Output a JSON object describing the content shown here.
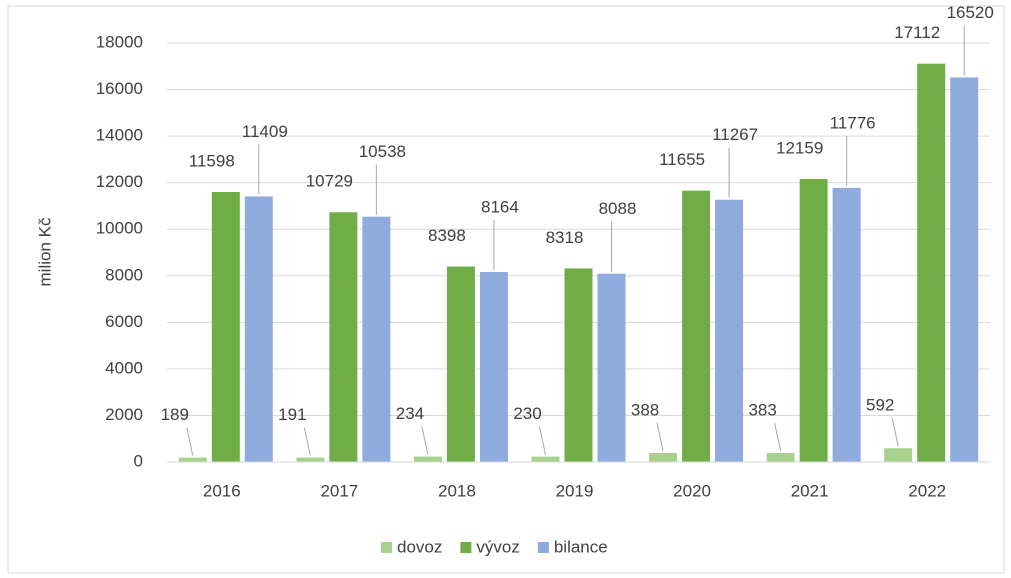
{
  "chart_data": {
    "type": "bar",
    "y_label": "milion Kč",
    "categories": [
      "2016",
      "2017",
      "2018",
      "2019",
      "2020",
      "2021",
      "2022"
    ],
    "series": [
      {
        "name": "dovoz",
        "color": "#a9d18e",
        "values": [
          189,
          191,
          234,
          230,
          388,
          383,
          592
        ]
      },
      {
        "name": "vývoz",
        "color": "#70ad47",
        "values": [
          11598,
          10729,
          8398,
          8318,
          11655,
          12159,
          17112
        ]
      },
      {
        "name": "bilance",
        "color": "#8faadc",
        "values": [
          11409,
          10538,
          8164,
          8088,
          11267,
          11776,
          16520
        ]
      }
    ],
    "ylim": [
      0,
      18000
    ],
    "yticks": [
      0,
      2000,
      4000,
      6000,
      8000,
      10000,
      12000,
      14000,
      16000,
      18000
    ],
    "grid": true,
    "legend": "bottom"
  }
}
